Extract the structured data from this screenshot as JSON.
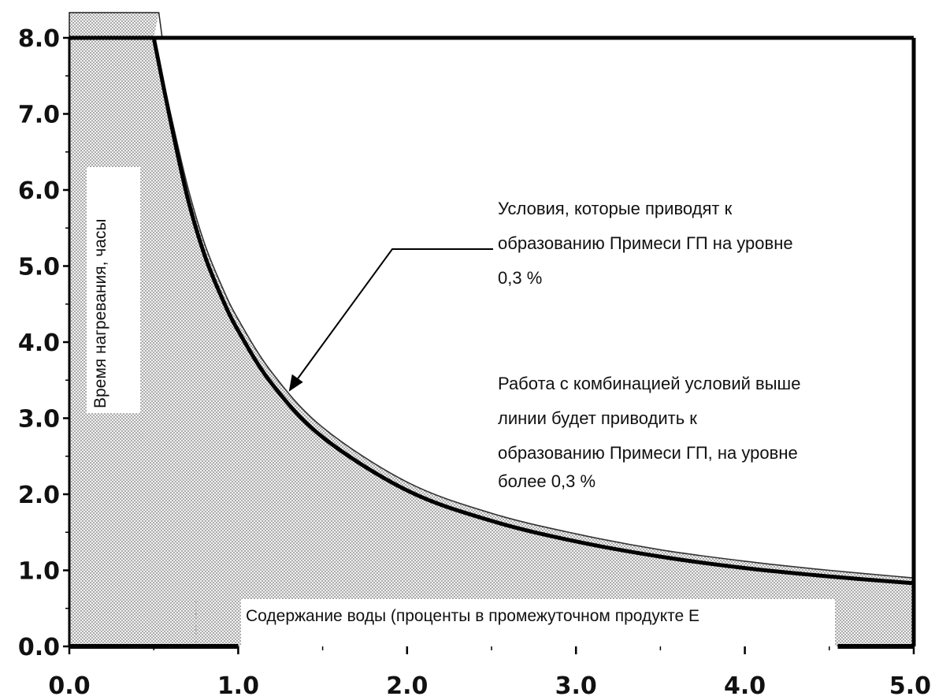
{
  "chart_data": {
    "type": "area",
    "title": "",
    "xlabel": "Содержание воды (проценты в промежуточном продукте Е",
    "ylabel": "Время нагревания, часы",
    "xlim": [
      0.0,
      5.0
    ],
    "ylim": [
      0.0,
      8.0
    ],
    "x_tick_labels": [
      "0.0",
      "1.0",
      "2.0",
      "3.0",
      "4.0",
      "5.0"
    ],
    "y_tick_labels": [
      "0.0",
      "1.0",
      "2.0",
      "3.0",
      "4.0",
      "5.0",
      "6.0",
      "7.0",
      "8.0"
    ],
    "grid": "vertical dotted",
    "series": [
      {
        "style": "thick black line",
        "x": [
          0.5,
          0.6,
          0.7,
          0.8,
          0.9,
          1.0,
          1.2,
          1.5,
          2.0,
          2.5,
          3.0,
          3.5,
          4.0,
          4.5,
          5.0
        ],
        "y": [
          8.0,
          6.9,
          5.9,
          5.15,
          4.6,
          4.15,
          3.45,
          2.75,
          2.05,
          1.65,
          1.38,
          1.18,
          1.03,
          0.92,
          0.83
        ]
      }
    ],
    "upper_band_x": [
      0.5,
      0.6,
      0.7,
      0.8,
      0.9,
      1.0,
      1.2,
      1.5,
      2.0,
      2.5,
      3.0,
      3.5,
      4.0,
      4.5,
      5.0
    ],
    "upper_band_y": [
      8.0,
      7.0,
      6.05,
      5.3,
      4.75,
      4.3,
      3.6,
      2.88,
      2.16,
      1.75,
      1.48,
      1.27,
      1.12,
      1.0,
      0.9
    ],
    "annotations": [
      {
        "lines": [
          "Условия, которые приводят к",
          "образованию Примеси ГП на уровне",
          "0,3 %"
        ],
        "arrow_to": [
          1.3,
          3.35
        ]
      },
      {
        "lines": [
          "Работа с комбинацией условий выше",
          "линии будет приводить к",
          "образованию Примеси ГП, на уровне",
          "более 0,3 %"
        ]
      }
    ]
  }
}
